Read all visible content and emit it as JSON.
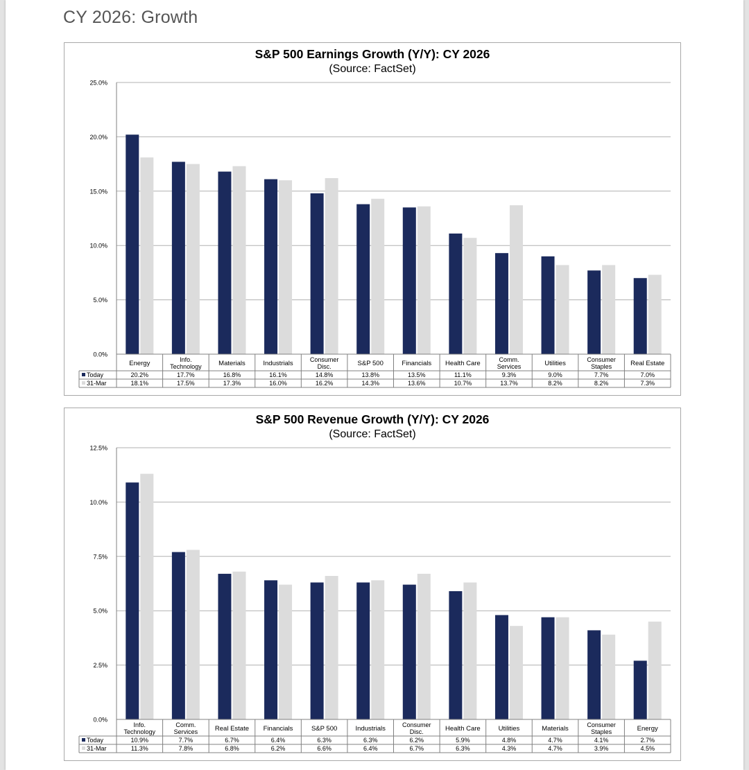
{
  "page": {
    "title": "CY 2026: Growth"
  },
  "colors": {
    "today": "#1b2a5c",
    "prior": "#dcdcdc",
    "grid": "#b0b0b0",
    "axis": "#808080"
  },
  "chart_data": [
    {
      "type": "bar",
      "title": "S&P 500 Earnings Growth (Y/Y): CY 2026",
      "subtitle": "(Source: FactSet)",
      "ylim": [
        0,
        25
      ],
      "yticks": [
        "0.0%",
        "5.0%",
        "10.0%",
        "15.0%",
        "20.0%",
        "25.0%"
      ],
      "ytick_values": [
        0,
        5,
        10,
        15,
        20,
        25
      ],
      "grid": true,
      "legend": "table-below",
      "categories": [
        [
          "Energy"
        ],
        [
          "Info.",
          "Technology"
        ],
        [
          "Materials"
        ],
        [
          "Industrials"
        ],
        [
          "Consumer",
          "Disc."
        ],
        [
          "S&P 500"
        ],
        [
          "Financials"
        ],
        [
          "Health Care"
        ],
        [
          "Comm.",
          "Services"
        ],
        [
          "Utilities"
        ],
        [
          "Consumer",
          "Staples"
        ],
        [
          "Real Estate"
        ]
      ],
      "series": [
        {
          "name": "Today",
          "values": [
            20.2,
            17.7,
            16.8,
            16.1,
            14.8,
            13.8,
            13.5,
            11.1,
            9.3,
            9.0,
            7.7,
            7.0
          ],
          "labels": [
            "20.2%",
            "17.7%",
            "16.8%",
            "16.1%",
            "14.8%",
            "13.8%",
            "13.5%",
            "11.1%",
            "9.3%",
            "9.0%",
            "7.7%",
            "7.0%"
          ]
        },
        {
          "name": "31-Mar",
          "values": [
            18.1,
            17.5,
            17.3,
            16.0,
            16.2,
            14.3,
            13.6,
            10.7,
            13.7,
            8.2,
            8.2,
            7.3
          ],
          "labels": [
            "18.1%",
            "17.5%",
            "17.3%",
            "16.0%",
            "16.2%",
            "14.3%",
            "13.6%",
            "10.7%",
            "13.7%",
            "8.2%",
            "8.2%",
            "7.3%"
          ]
        }
      ]
    },
    {
      "type": "bar",
      "title": "S&P 500 Revenue Growth (Y/Y): CY 2026",
      "subtitle": "(Source: FactSet)",
      "ylim": [
        0,
        12.5
      ],
      "yticks": [
        "0.0%",
        "2.5%",
        "5.0%",
        "7.5%",
        "10.0%",
        "12.5%"
      ],
      "ytick_values": [
        0,
        2.5,
        5,
        7.5,
        10,
        12.5
      ],
      "grid": true,
      "legend": "table-below",
      "categories": [
        [
          "Info.",
          "Technology"
        ],
        [
          "Comm.",
          "Services"
        ],
        [
          "Real Estate"
        ],
        [
          "Financials"
        ],
        [
          "S&P 500"
        ],
        [
          "Industrials"
        ],
        [
          "Consumer",
          "Disc."
        ],
        [
          "Health Care"
        ],
        [
          "Utilities"
        ],
        [
          "Materials"
        ],
        [
          "Consumer",
          "Staples"
        ],
        [
          "Energy"
        ]
      ],
      "series": [
        {
          "name": "Today",
          "values": [
            10.9,
            7.7,
            6.7,
            6.4,
            6.3,
            6.3,
            6.2,
            5.9,
            4.8,
            4.7,
            4.1,
            2.7
          ],
          "labels": [
            "10.9%",
            "7.7%",
            "6.7%",
            "6.4%",
            "6.3%",
            "6.3%",
            "6.2%",
            "5.9%",
            "4.8%",
            "4.7%",
            "4.1%",
            "2.7%"
          ]
        },
        {
          "name": "31-Mar",
          "values": [
            11.3,
            7.8,
            6.8,
            6.2,
            6.6,
            6.4,
            6.7,
            6.3,
            4.3,
            4.7,
            3.9,
            4.5
          ],
          "labels": [
            "11.3%",
            "7.8%",
            "6.8%",
            "6.2%",
            "6.6%",
            "6.4%",
            "6.7%",
            "6.3%",
            "4.3%",
            "4.7%",
            "3.9%",
            "4.5%"
          ]
        }
      ]
    }
  ]
}
